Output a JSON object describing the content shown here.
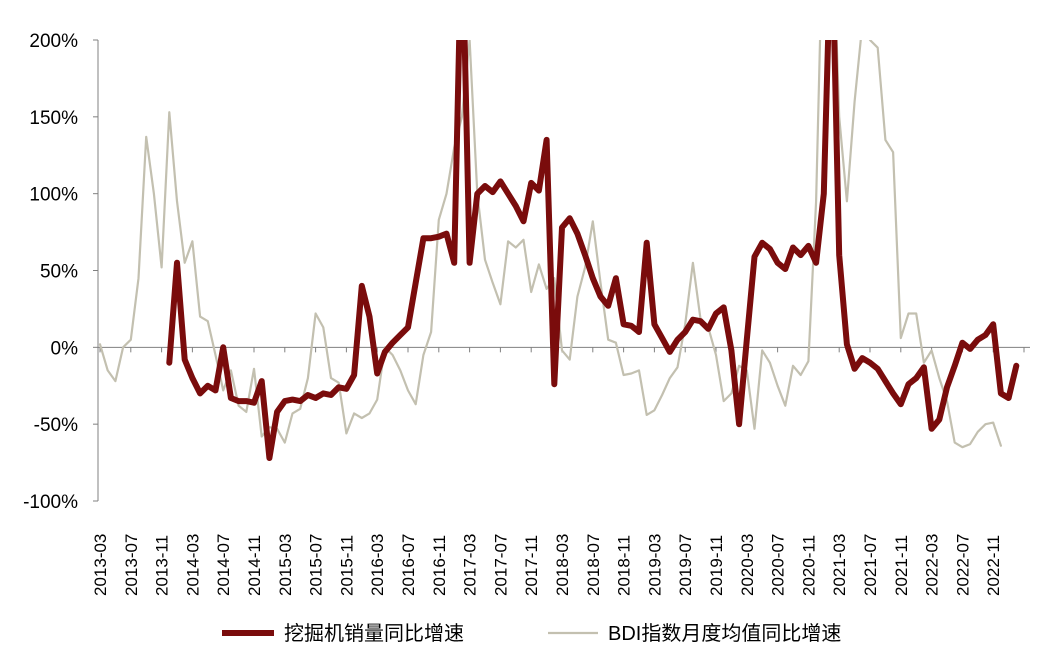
{
  "chart_data": {
    "type": "line",
    "title": "",
    "xlabel": "",
    "ylabel": "",
    "ylim": [
      -100,
      200
    ],
    "y_ticks": [
      "200%",
      "150%",
      "100%",
      "50%",
      "0%",
      "-50%",
      "-100%"
    ],
    "y_tick_values": [
      200,
      150,
      100,
      50,
      0,
      -50,
      -100
    ],
    "x_tick_labels": [
      "2013-03",
      "2013-07",
      "2013-11",
      "2014-03",
      "2014-07",
      "2014-11",
      "2015-03",
      "2015-07",
      "2015-11",
      "2016-03",
      "2016-07",
      "2016-11",
      "2017-03",
      "2017-07",
      "2017-11",
      "2018-03",
      "2018-07",
      "2018-11",
      "2019-03",
      "2019-07",
      "2019-11",
      "2020-03",
      "2020-07",
      "2020-11",
      "2021-03",
      "2021-07",
      "2021-11",
      "2022-03",
      "2022-07",
      "2022-11"
    ],
    "x_start": "2013-03",
    "grid": false,
    "legend_position": "bottom",
    "series": [
      {
        "name": "挖掘机销量同比增速",
        "color": "#7a0c0c",
        "values": [
          null,
          null,
          null,
          null,
          null,
          null,
          null,
          null,
          null,
          -10,
          55,
          -8,
          -20,
          -30,
          -25,
          -28,
          0,
          -33,
          -35,
          -35,
          -36,
          -22,
          -72,
          -42,
          -35,
          -34,
          -35,
          -31,
          -33,
          -30,
          -31,
          -26,
          -27,
          -18,
          40,
          20,
          -17,
          -3,
          3,
          8,
          13,
          42,
          71,
          71,
          72,
          74,
          55,
          280,
          55,
          100,
          105,
          101,
          108,
          100,
          92,
          82,
          107,
          102,
          135,
          -24,
          78,
          84,
          74,
          60,
          45,
          33,
          27,
          45,
          15,
          14,
          10,
          68,
          15,
          6,
          -3,
          5,
          10,
          18,
          17,
          12,
          22,
          26,
          -2,
          -50,
          5,
          59,
          68,
          64,
          55,
          51,
          65,
          60,
          66,
          55,
          100,
          280,
          60,
          2,
          -14,
          -7,
          -10,
          -14,
          -22,
          -30,
          -37,
          -24,
          -20,
          -13,
          -53,
          -47,
          -26,
          -12,
          3,
          -1,
          5,
          8,
          15,
          -30,
          -33,
          -12
        ]
      },
      {
        "name": "BDI指数月度均值同比增速",
        "color": "#c3c0b0",
        "values": [
          2,
          -15,
          -22,
          0,
          5,
          45,
          137,
          100,
          52,
          153,
          95,
          55,
          69,
          20,
          17,
          -5,
          -28,
          -15,
          -38,
          -42,
          -14,
          -58,
          -52,
          -53,
          -62,
          -43,
          -40,
          -20,
          22,
          13,
          -20,
          -23,
          -56,
          -43,
          -46,
          -43,
          -34,
          0,
          -5,
          -15,
          -28,
          -37,
          -5,
          10,
          83,
          100,
          130,
          150,
          200,
          100,
          57,
          42,
          28,
          69,
          65,
          70,
          36,
          54,
          38,
          45,
          -2,
          -8,
          33,
          52,
          82,
          42,
          5,
          3,
          -18,
          -17,
          -15,
          -44,
          -41,
          -31,
          -20,
          -13,
          15,
          55,
          18,
          13,
          -5,
          -35,
          -30,
          -12,
          -15,
          -53,
          -2,
          -10,
          -25,
          -38,
          -12,
          -18,
          -9,
          95,
          300,
          300,
          150,
          95,
          160,
          210,
          200,
          195,
          135,
          127,
          6,
          22,
          22,
          -10,
          -2,
          -20,
          -35,
          -62,
          -65,
          -63,
          -55,
          -50,
          -49,
          -64
        ]
      }
    ]
  }
}
